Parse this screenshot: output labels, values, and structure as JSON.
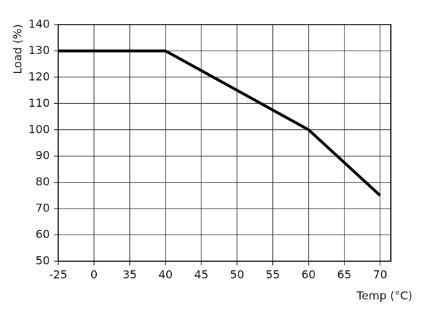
{
  "chart_data": {
    "type": "line",
    "x_label": "Temp (°C)",
    "y_label": "Load (%)",
    "categories": [
      "-25",
      "0",
      "35",
      "40",
      "45",
      "50",
      "55",
      "60",
      "65",
      "70"
    ],
    "values": [
      130,
      130,
      130,
      130,
      122.5,
      115,
      107.5,
      100,
      87.5,
      75
    ],
    "color": "#000000",
    "ylim": [
      50,
      140
    ],
    "yticks": [
      50,
      60,
      70,
      80,
      90,
      100,
      110,
      120,
      130,
      140
    ],
    "grid": true
  }
}
